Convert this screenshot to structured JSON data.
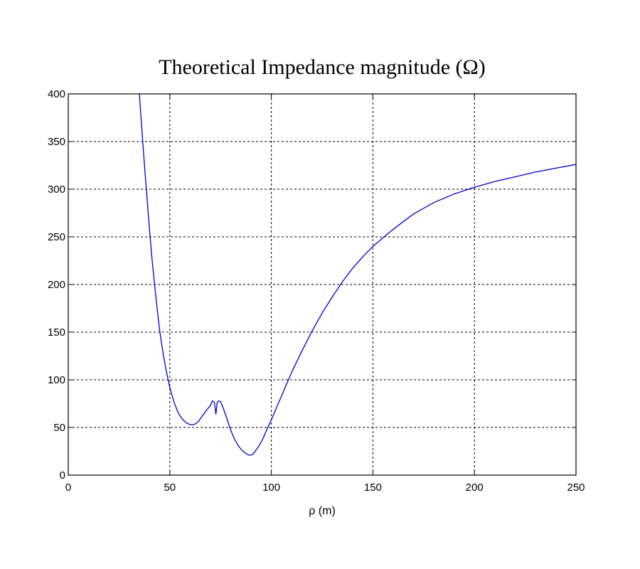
{
  "chart_data": {
    "type": "line",
    "title": "Theoretical Impedance magnitude (Ω)",
    "xlabel": "ρ (m)",
    "ylabel": "",
    "xlim": [
      0,
      250
    ],
    "ylim": [
      0,
      400
    ],
    "grid": true,
    "x_ticks": [
      "0",
      "50",
      "100",
      "150",
      "200",
      "250"
    ],
    "y_ticks": [
      "0",
      "50",
      "100",
      "150",
      "200",
      "250",
      "300",
      "350",
      "400"
    ],
    "series": [
      {
        "color": "#0000cc",
        "x": [
          35,
          36,
          37,
          38,
          39,
          40,
          41,
          42,
          43,
          44,
          45,
          46,
          47,
          48,
          49,
          50,
          52,
          54,
          56,
          58,
          60,
          62,
          64,
          66,
          68,
          70,
          71,
          72,
          72.7,
          73.3,
          74,
          75,
          76,
          78,
          80,
          82,
          84,
          86,
          88,
          89,
          90,
          91,
          92,
          94,
          96,
          98,
          100,
          105,
          110,
          115,
          120,
          125,
          130,
          135,
          140,
          145,
          150,
          160,
          170,
          180,
          190,
          200,
          210,
          220,
          230,
          240,
          250
        ],
        "y": [
          400,
          370,
          340,
          312,
          285,
          258,
          232,
          210,
          190,
          170,
          152,
          137,
          124,
          112,
          102,
          92,
          77,
          66,
          59,
          55,
          53,
          53,
          56,
          62,
          68,
          73,
          78,
          76,
          64,
          76,
          78,
          77,
          72,
          60,
          47,
          37,
          30,
          25,
          22,
          21,
          21,
          22,
          25,
          31,
          39,
          49,
          58,
          83,
          108,
          130,
          151,
          170,
          187,
          203,
          217,
          229,
          240,
          258,
          274,
          286,
          295,
          302,
          308,
          313,
          318,
          322,
          326
        ]
      }
    ]
  }
}
